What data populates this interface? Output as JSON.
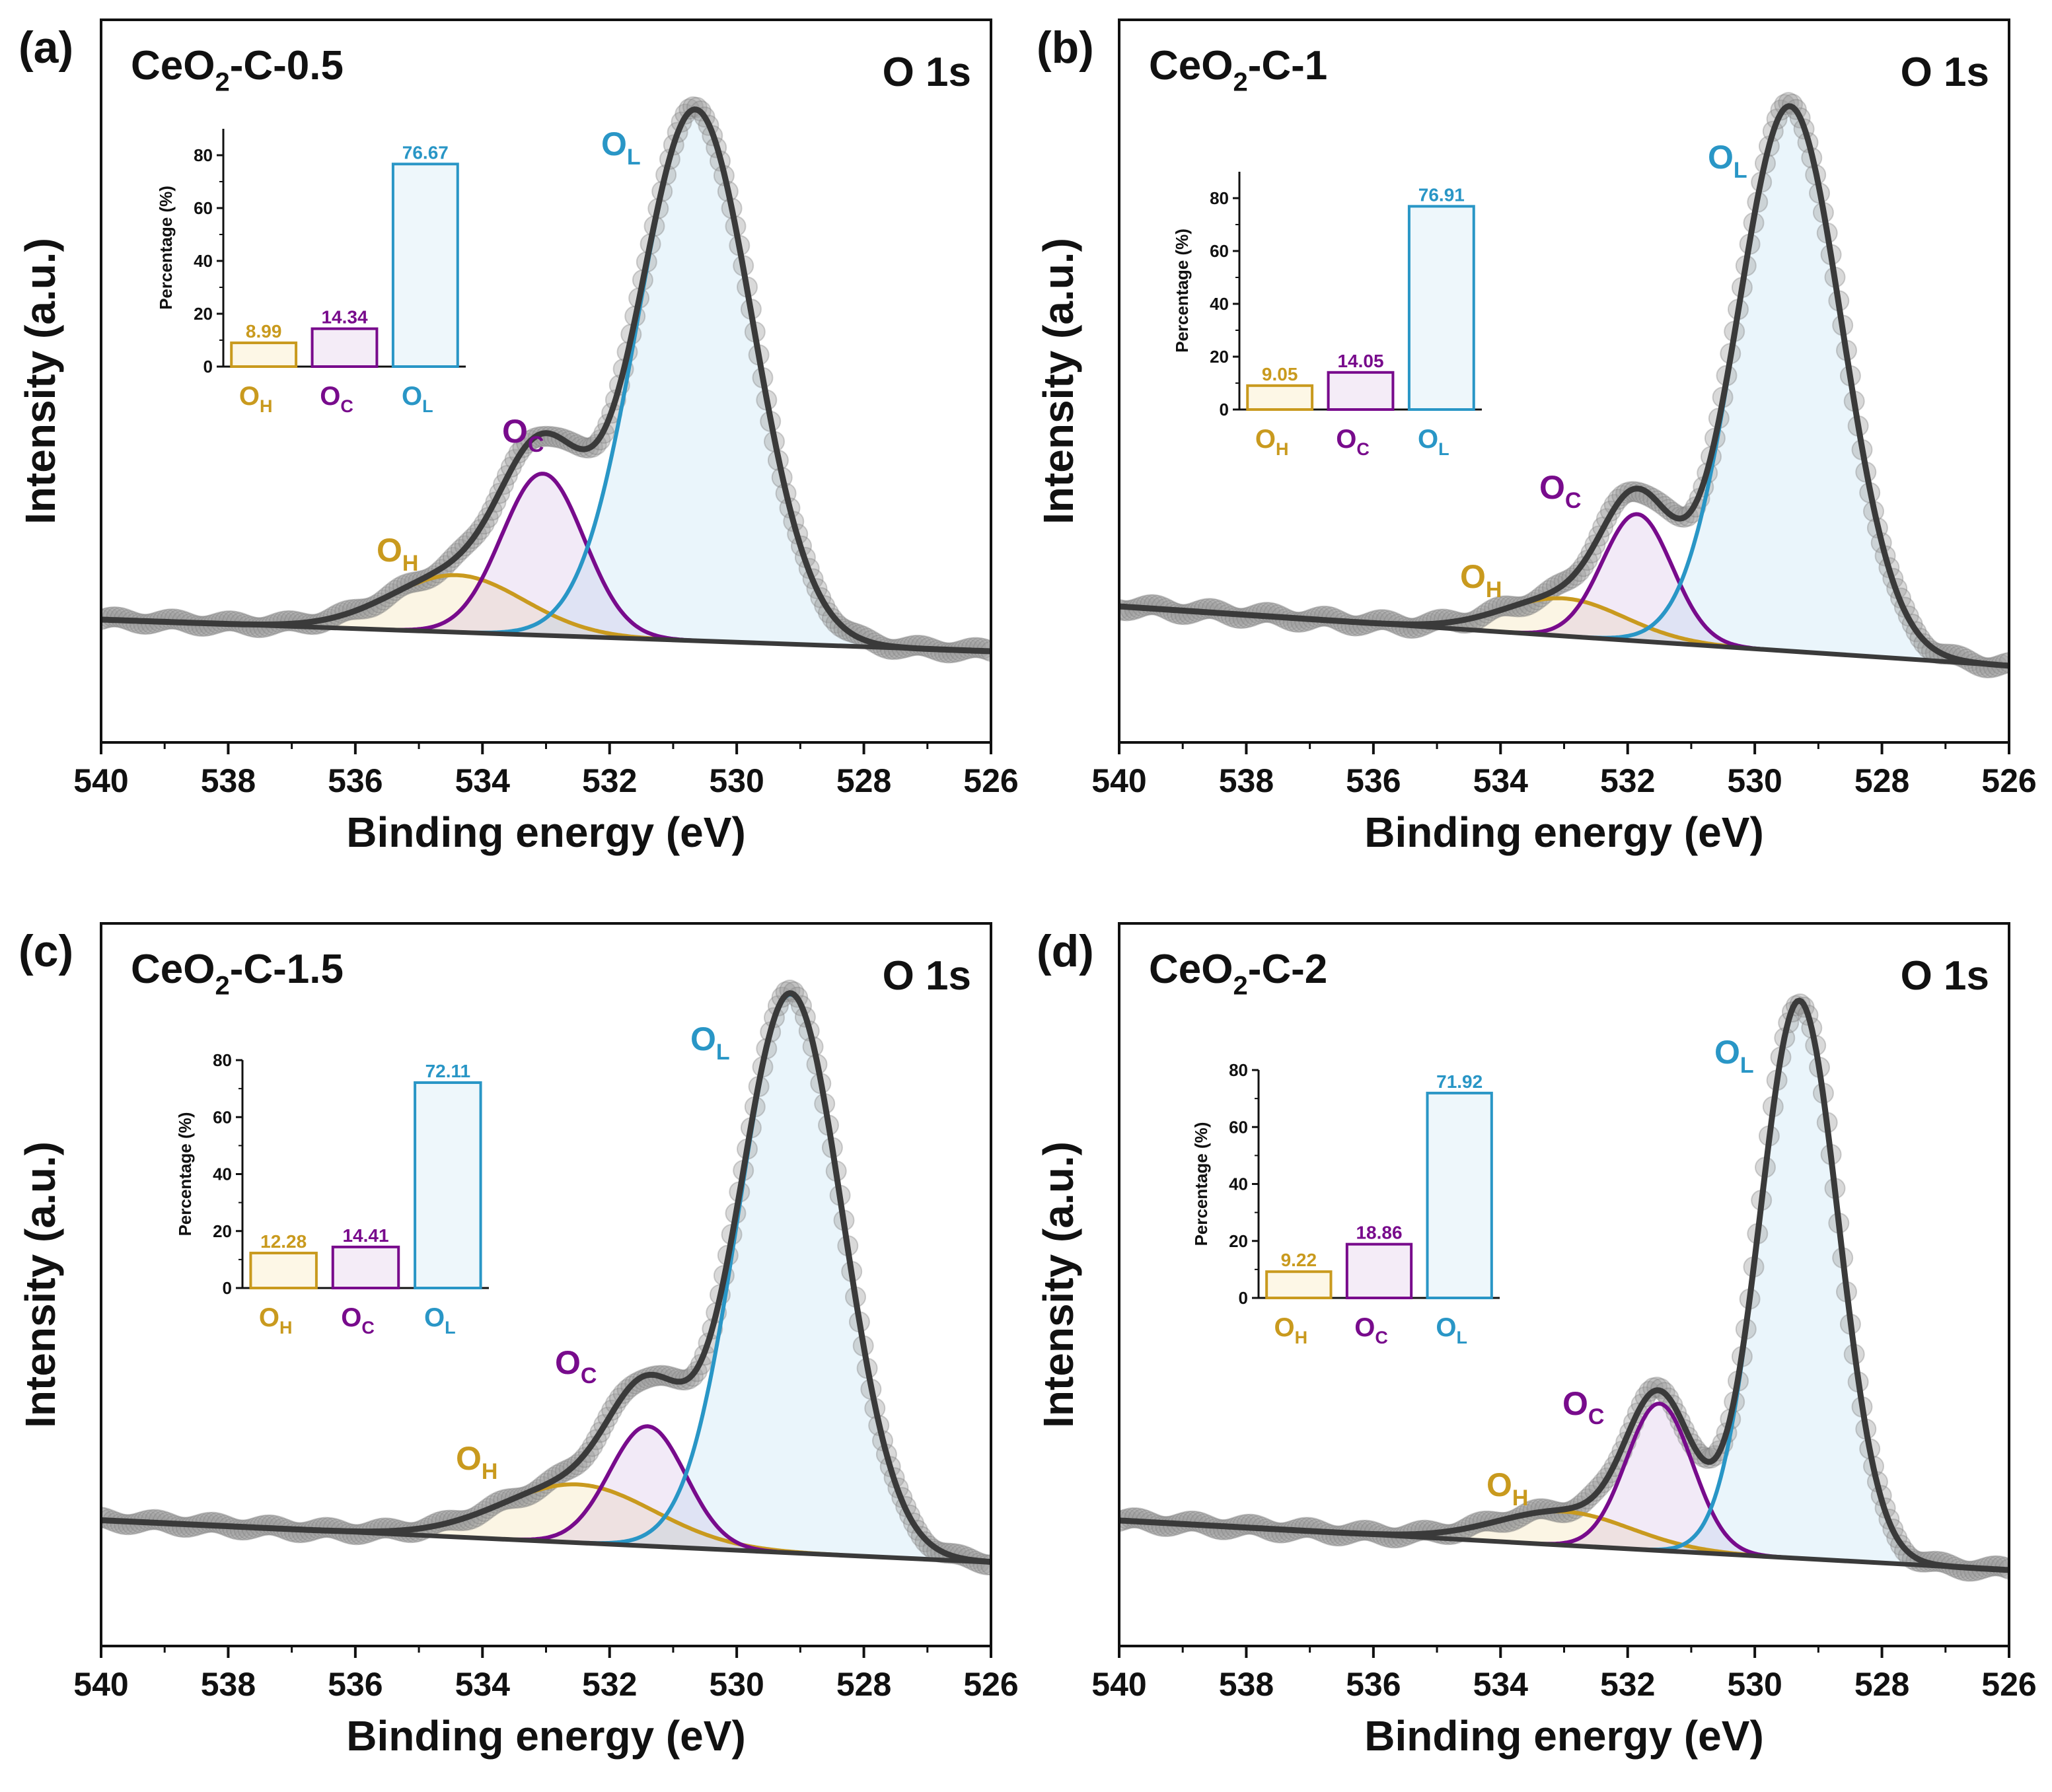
{
  "colors": {
    "OH": "#c99a1e",
    "OC": "#780b8c",
    "OL": "#2996c6",
    "fit": "#3a3a3a",
    "points": "#9a9a9a"
  },
  "chart_data": [
    {
      "type": "line",
      "panel_tag": "(a)",
      "title": "CeO",
      "title_sub": "2",
      "title_rest": "-C-0.5",
      "core_level": "O 1s",
      "xlabel": "Binding energy (eV)",
      "ylabel": "Intensity (a.u.)",
      "xlim": [
        540,
        526
      ],
      "xticks": [
        "540",
        "538",
        "536",
        "534",
        "532",
        "530",
        "528",
        "526"
      ],
      "xtick_values": [
        540,
        538,
        536,
        534,
        532,
        530,
        528,
        526
      ],
      "background": [
        0.3,
        0.1
      ],
      "peaks": [
        {
          "key": "OH",
          "label": "O",
          "sub": "H",
          "center": 534.4,
          "height": 0.36,
          "sigma": 1.05
        },
        {
          "key": "OC",
          "label": "O",
          "sub": "C",
          "center": 533.05,
          "height": 1.02,
          "sigma": 0.65
        },
        {
          "key": "OL",
          "label": "O",
          "sub": "L",
          "center": 530.65,
          "height": 3.35,
          "sigma": 0.9
        }
      ],
      "inset": {
        "ylabel": "Percentage (%)",
        "ylim": [
          0,
          90
        ],
        "yticks": [
          "0",
          "20",
          "40",
          "60",
          "80"
        ],
        "ytick_values": [
          0,
          20,
          40,
          60,
          80
        ],
        "categories": [
          {
            "label": "O",
            "sub": "H"
          },
          {
            "label": "O",
            "sub": "C"
          },
          {
            "label": "O",
            "sub": "L"
          }
        ],
        "values": [
          8.99,
          14.34,
          76.67
        ],
        "value_labels": [
          "8.99",
          "14.34",
          "76.67"
        ]
      }
    },
    {
      "type": "line",
      "panel_tag": "(b)",
      "title": "CeO",
      "title_sub": "2",
      "title_rest": "-C-1",
      "core_level": "O 1s",
      "xlabel": "Binding energy (eV)",
      "ylabel": "Intensity (a.u.)",
      "xlim": [
        540,
        526
      ],
      "xticks": [
        "540",
        "538",
        "536",
        "534",
        "532",
        "530",
        "528",
        "526"
      ],
      "xtick_values": [
        540,
        538,
        536,
        534,
        532,
        530,
        528,
        526
      ],
      "background": [
        0.34,
        0.04
      ],
      "peaks": [
        {
          "key": "OH",
          "label": "O",
          "sub": "H",
          "center": 533.0,
          "height": 0.19,
          "sigma": 0.95
        },
        {
          "key": "OC",
          "label": "O",
          "sub": "C",
          "center": 531.85,
          "height": 0.64,
          "sigma": 0.55
        },
        {
          "key": "OL",
          "label": "O",
          "sub": "L",
          "center": 529.45,
          "height": 2.75,
          "sigma": 0.82
        }
      ],
      "inset": {
        "ylabel": "Percentage (%)",
        "ylim": [
          0,
          90
        ],
        "yticks": [
          "0",
          "20",
          "40",
          "60",
          "80"
        ],
        "ytick_values": [
          0,
          20,
          40,
          60,
          80
        ],
        "categories": [
          {
            "label": "O",
            "sub": "H"
          },
          {
            "label": "O",
            "sub": "C"
          },
          {
            "label": "O",
            "sub": "L"
          }
        ],
        "values": [
          9.05,
          14.05,
          76.91
        ],
        "value_labels": [
          "9.05",
          "14.05",
          "76.91"
        ]
      }
    },
    {
      "type": "line",
      "panel_tag": "(c)",
      "title": "CeO",
      "title_sub": "2",
      "title_rest": "-C-1.5",
      "core_level": "O 1s",
      "xlabel": "Binding energy (eV)",
      "ylabel": "Intensity (a.u.)",
      "xlim": [
        540,
        526
      ],
      "xticks": [
        "540",
        "538",
        "536",
        "534",
        "532",
        "530",
        "528",
        "526"
      ],
      "xtick_values": [
        540,
        538,
        536,
        534,
        532,
        530,
        528,
        526
      ],
      "background": [
        0.3,
        0.04
      ],
      "peaks": [
        {
          "key": "OH",
          "label": "O",
          "sub": "H",
          "center": 532.5,
          "height": 0.36,
          "sigma": 1.2
        },
        {
          "key": "OC",
          "label": "O",
          "sub": "C",
          "center": 531.4,
          "height": 0.74,
          "sigma": 0.6
        },
        {
          "key": "OL",
          "label": "O",
          "sub": "L",
          "center": 529.15,
          "height": 3.45,
          "sigma": 0.82
        }
      ],
      "inset": {
        "ylabel": "Percentage (%)",
        "ylim": [
          0,
          80
        ],
        "yticks": [
          "0",
          "20",
          "40",
          "60",
          "80"
        ],
        "ytick_values": [
          0,
          20,
          40,
          60,
          80
        ],
        "categories": [
          {
            "label": "O",
            "sub": "H"
          },
          {
            "label": "O",
            "sub": "C"
          },
          {
            "label": "O",
            "sub": "L"
          }
        ],
        "values": [
          12.28,
          14.41,
          72.11
        ],
        "value_labels": [
          "12.28",
          "14.41",
          "72.11"
        ]
      }
    },
    {
      "type": "line",
      "panel_tag": "(d)",
      "title": "CeO",
      "title_sub": "2",
      "title_rest": "-C-2",
      "core_level": "O 1s",
      "xlabel": "Binding energy (eV)",
      "ylabel": "Intensity (a.u.)",
      "xlim": [
        540,
        526
      ],
      "xticks": [
        "540",
        "538",
        "536",
        "534",
        "532",
        "530",
        "528",
        "526"
      ],
      "xtick_values": [
        540,
        538,
        536,
        534,
        532,
        530,
        528,
        526
      ],
      "background": [
        0.34,
        0.06
      ],
      "peaks": [
        {
          "key": "OH",
          "label": "O",
          "sub": "H",
          "center": 533.0,
          "height": 0.19,
          "sigma": 1.05
        },
        {
          "key": "OC",
          "label": "O",
          "sub": "C",
          "center": 531.5,
          "height": 0.83,
          "sigma": 0.52
        },
        {
          "key": "OL",
          "label": "O",
          "sub": "L",
          "center": 529.3,
          "height": 3.15,
          "sigma": 0.62
        }
      ],
      "inset": {
        "ylabel": "Percentage (%)",
        "ylim": [
          0,
          80
        ],
        "yticks": [
          "0",
          "20",
          "40",
          "60",
          "80"
        ],
        "ytick_values": [
          0,
          20,
          40,
          60,
          80
        ],
        "categories": [
          {
            "label": "O",
            "sub": "H"
          },
          {
            "label": "O",
            "sub": "C"
          },
          {
            "label": "O",
            "sub": "L"
          }
        ],
        "values": [
          9.22,
          18.86,
          71.92
        ],
        "value_labels": [
          "9.22",
          "18.86",
          "71.92"
        ]
      }
    }
  ]
}
